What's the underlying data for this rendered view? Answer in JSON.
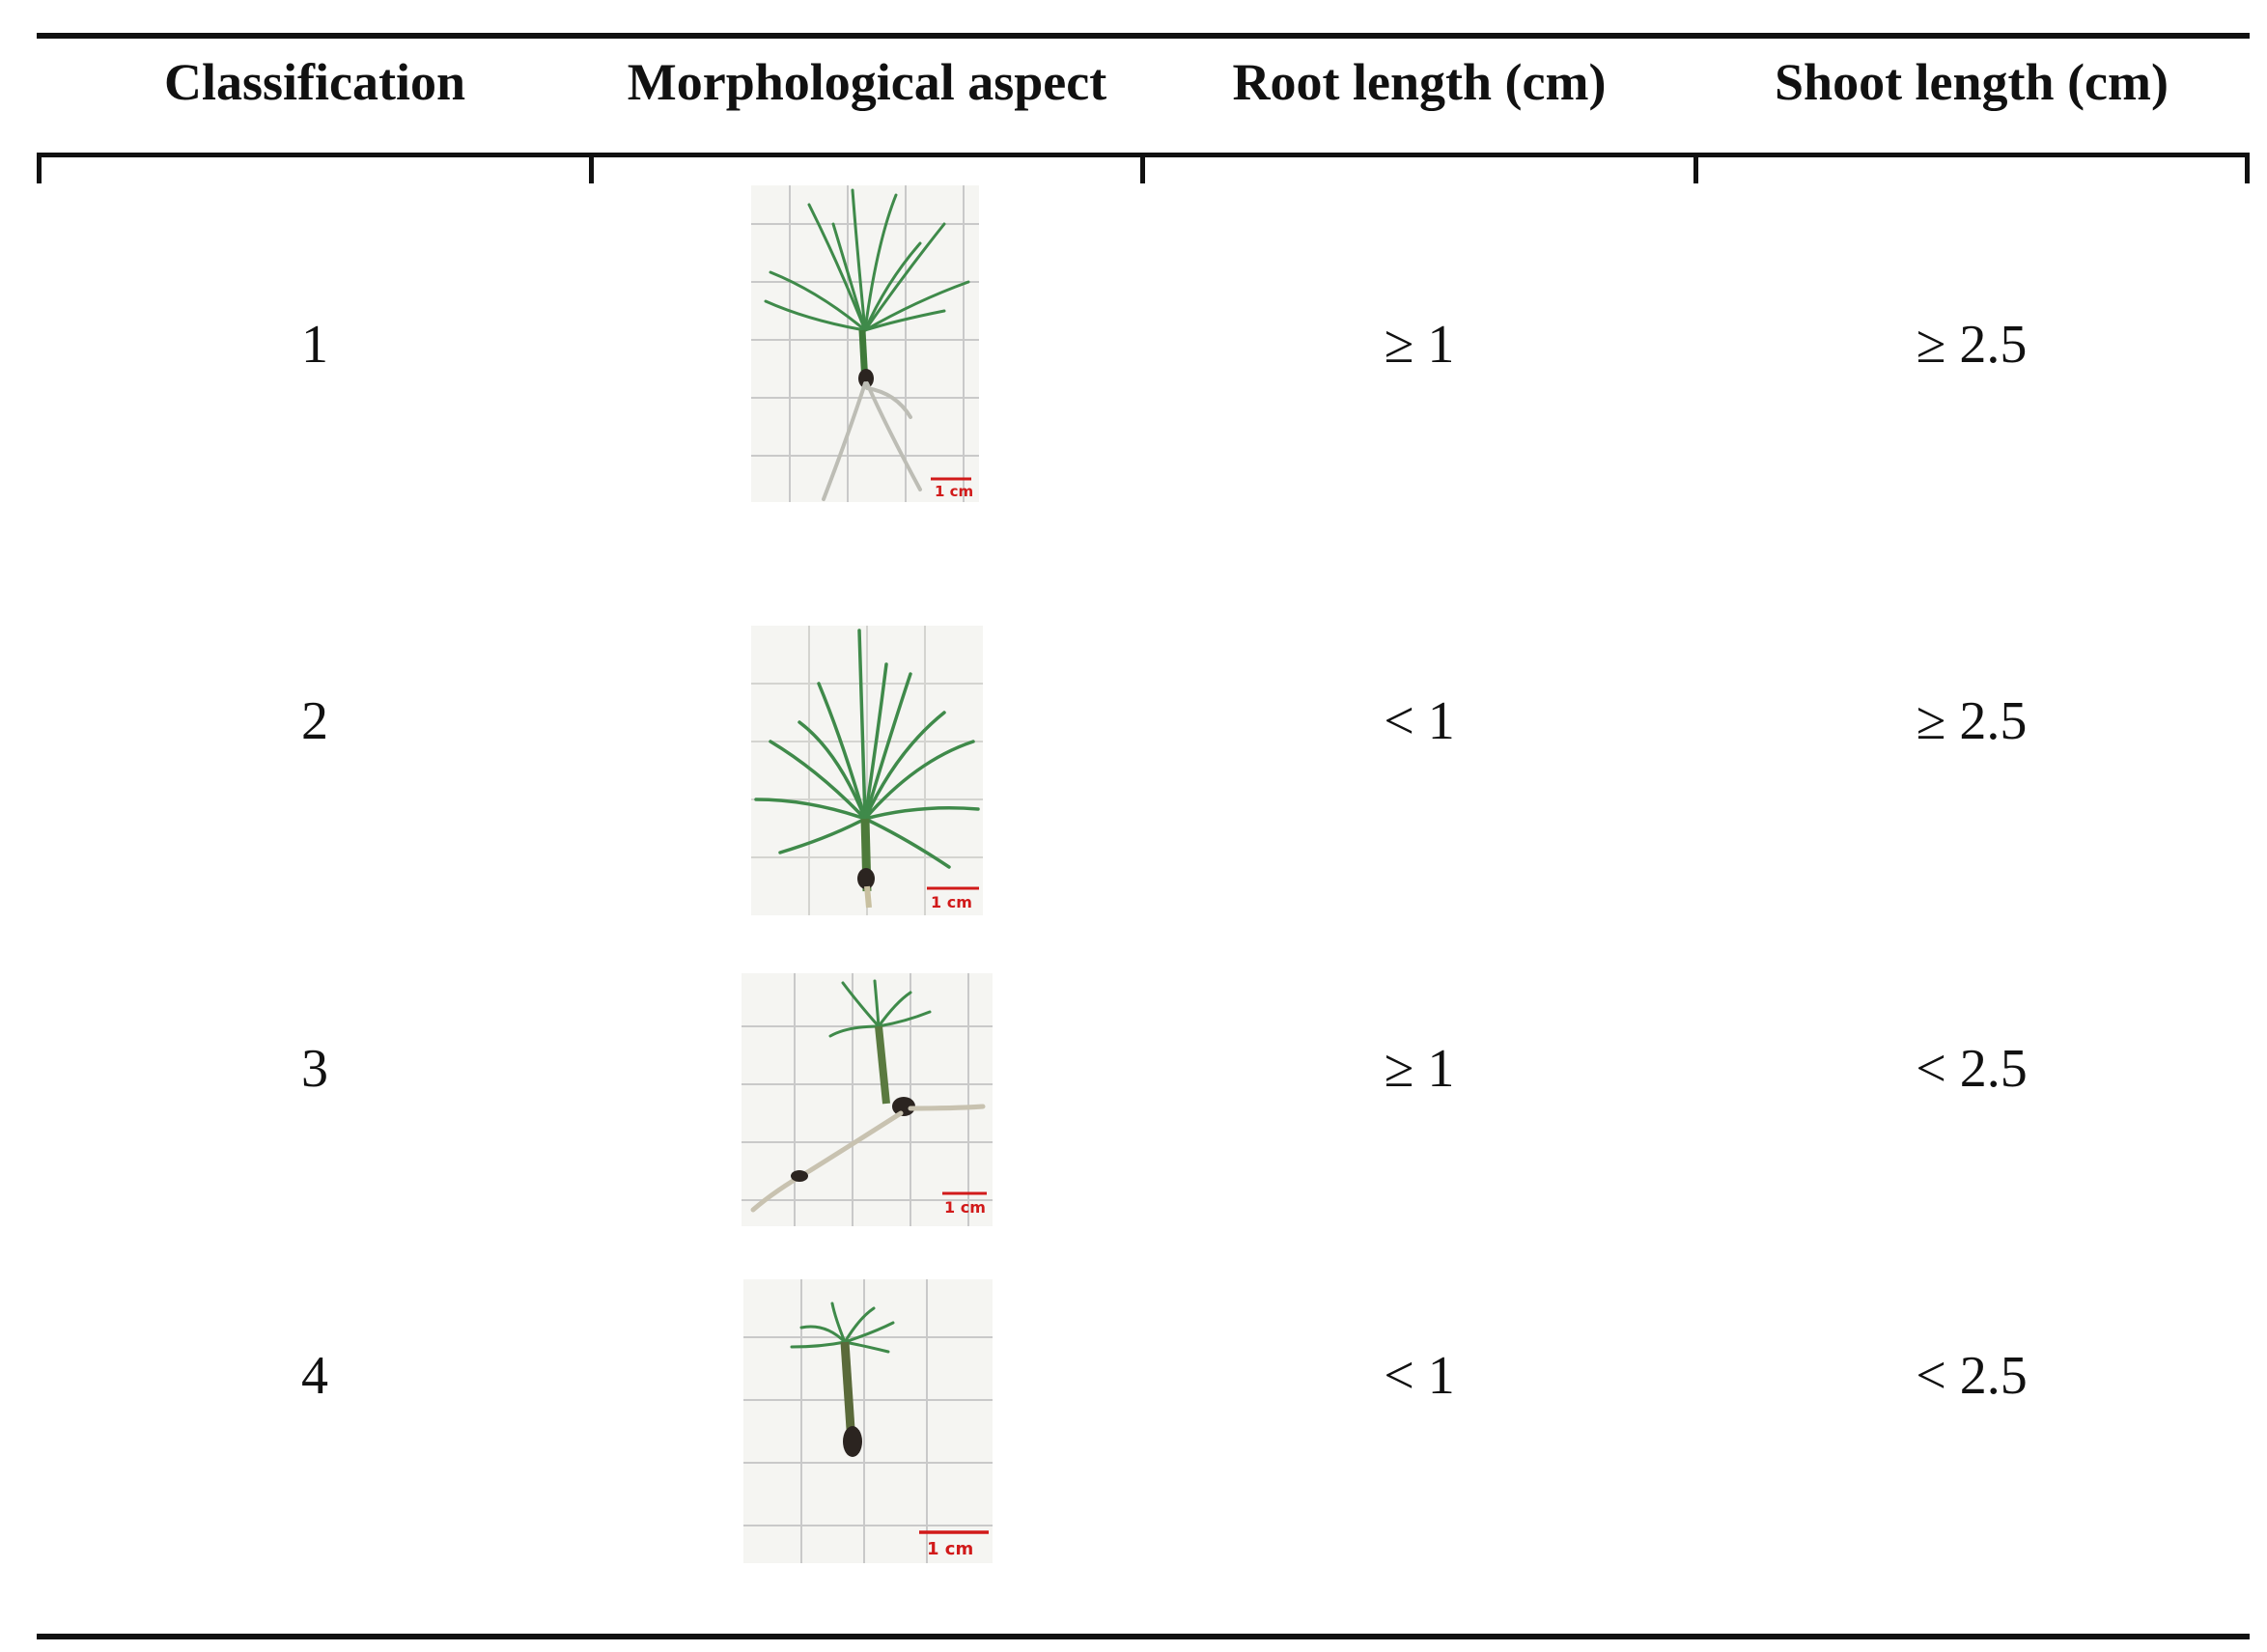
{
  "table": {
    "headers": [
      "Classification",
      "Morphological aspect",
      "Root length (cm)",
      "Shoot length (cm)"
    ],
    "rows": [
      {
        "classification": "1",
        "root": "≥ 1",
        "shoot": "≥ 2.5",
        "scale_label": "1 cm",
        "icon": "seedling-long-root-tall-shoot-photo"
      },
      {
        "classification": "2",
        "root": "< 1",
        "shoot": "≥ 2.5",
        "scale_label": "1 cm",
        "icon": "seedling-short-root-tall-shoot-photo"
      },
      {
        "classification": "3",
        "root": "≥ 1",
        "shoot": "< 2.5",
        "scale_label": "1 cm",
        "icon": "seedling-long-root-short-shoot-photo"
      },
      {
        "classification": "4",
        "root": "< 1",
        "shoot": "< 2.5",
        "scale_label": "1 cm",
        "icon": "seedling-short-root-short-shoot-photo"
      }
    ]
  },
  "colors": {
    "rule": "#111111",
    "needle": "#3f8a4a",
    "scale_bar": "#d11a1a",
    "grid": "#c9c9c9"
  }
}
